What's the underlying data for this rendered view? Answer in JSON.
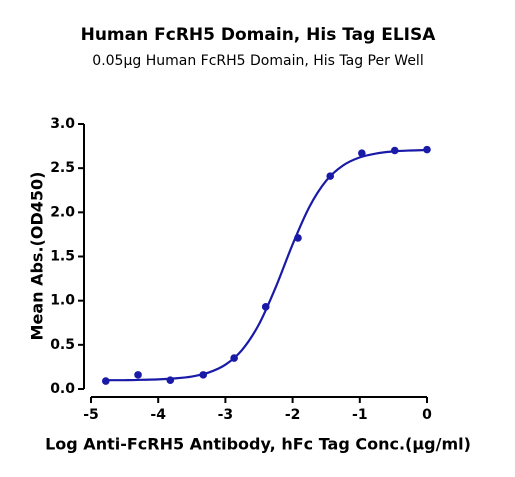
{
  "chart_data": {
    "type": "scatter",
    "title": "Human FcRH5 Domain, His Tag ELISA",
    "subtitle": "0.05µg Human FcRH5 Domain, His Tag Per Well",
    "x_label": "Log Anti-FcRH5 Antibody, hFc Tag Conc.(µg/ml)",
    "y_label": "Mean Abs.(OD450)",
    "color": "#1a1aa8",
    "x": [
      -4.78,
      -4.3,
      -3.82,
      -3.33,
      -2.87,
      -2.4,
      -1.92,
      -1.44,
      -0.97,
      -0.48,
      0
    ],
    "values": [
      0.09,
      0.16,
      0.1,
      0.16,
      0.35,
      0.93,
      1.71,
      2.41,
      2.67,
      2.7,
      2.71
    ],
    "fit": {
      "x": [
        -4.8,
        -4.5,
        -4.25,
        -4.0,
        -3.75,
        -3.5,
        -3.25,
        -3.0,
        -2.75,
        -2.5,
        -2.25,
        -2.0,
        -1.75,
        -1.5,
        -1.25,
        -1.0,
        -0.75,
        -0.5,
        -0.25,
        0
      ],
      "values": [
        0.1,
        0.1,
        0.104,
        0.109,
        0.12,
        0.141,
        0.186,
        0.275,
        0.444,
        0.733,
        1.154,
        1.637,
        2.062,
        2.358,
        2.53,
        2.622,
        2.667,
        2.69,
        2.7,
        2.705
      ]
    },
    "xlim": [
      -5,
      0
    ],
    "xticks": [
      -5,
      -4,
      -3,
      -2,
      -1,
      0
    ],
    "ylim": [
      0,
      3
    ],
    "yticks": [
      {
        "value": 0,
        "label": "0.0"
      },
      {
        "value": 0.5,
        "label": "0.5"
      },
      {
        "value": 1,
        "label": "1.0"
      },
      {
        "value": 1.5,
        "label": "1.5"
      },
      {
        "value": 2,
        "label": "2.0"
      },
      {
        "value": 2.5,
        "label": "2.5"
      },
      {
        "value": 3,
        "label": "3.0"
      }
    ]
  }
}
